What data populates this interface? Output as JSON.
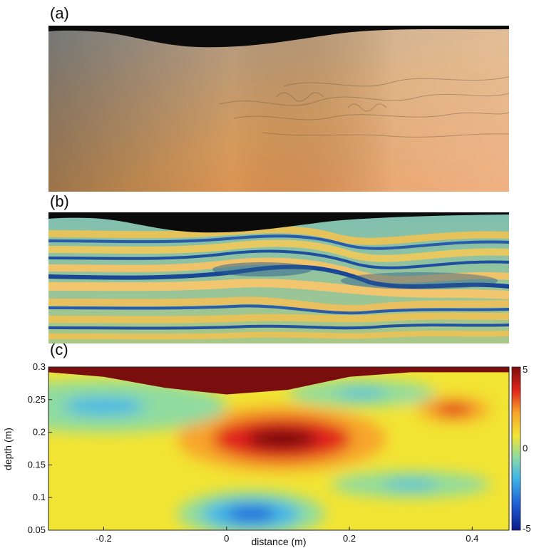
{
  "panels": {
    "a_label": "(a)",
    "b_label": "(b)",
    "c_label": "(c)"
  },
  "chart_data": {
    "type": "heatmap",
    "title": "",
    "xlabel": "distance (m)",
    "ylabel": "depth (m)",
    "xlim": [
      -0.29,
      0.46
    ],
    "ylim": [
      0.05,
      0.3
    ],
    "x_ticks": [
      -0.2,
      0,
      0.2,
      0.4
    ],
    "x_tick_labels": [
      "-0.2",
      "0",
      "0.2",
      "0.4"
    ],
    "y_ticks": [
      0.05,
      0.1,
      0.15,
      0.2,
      0.25,
      0.3
    ],
    "y_tick_labels": [
      "0.05",
      "0.1",
      "0.15",
      "0.2",
      "0.25",
      "0.3"
    ],
    "colorbar": {
      "range": [
        -5,
        5
      ],
      "ticks": [
        5,
        0,
        -5
      ],
      "tick_labels": [
        "5",
        "0",
        "-5"
      ],
      "colors": [
        "#0a1a8a",
        "#1f5fd6",
        "#3fb6e8",
        "#8fdca0",
        "#f2e433",
        "#f7a52a",
        "#e0231c",
        "#7a0d0d"
      ]
    },
    "background_value": 0.3,
    "features": [
      {
        "kind": "positive",
        "x": 0.09,
        "y": 0.19,
        "rx": 0.17,
        "ry": 0.05,
        "value": 4.8
      },
      {
        "kind": "positive",
        "x": 0.37,
        "y": 0.235,
        "rx": 0.09,
        "ry": 0.03,
        "value": 3.2
      },
      {
        "kind": "negative",
        "x": 0.04,
        "y": 0.075,
        "rx": 0.12,
        "ry": 0.035,
        "value": -3.6
      },
      {
        "kind": "negative",
        "x": 0.3,
        "y": 0.12,
        "rx": 0.13,
        "ry": 0.02,
        "value": -2.0
      },
      {
        "kind": "negative",
        "x": -0.2,
        "y": 0.24,
        "rx": 0.2,
        "ry": 0.04,
        "value": -1.8
      },
      {
        "kind": "negative",
        "x": 0.22,
        "y": 0.26,
        "rx": 0.12,
        "ry": 0.02,
        "value": -2.2
      }
    ],
    "surface_profile": {
      "x": [
        -0.29,
        -0.2,
        -0.1,
        0.0,
        0.1,
        0.2,
        0.3,
        0.46
      ],
      "y": [
        0.292,
        0.285,
        0.268,
        0.258,
        0.265,
        0.285,
        0.292,
        0.292
      ],
      "fill_value": 5
    }
  }
}
